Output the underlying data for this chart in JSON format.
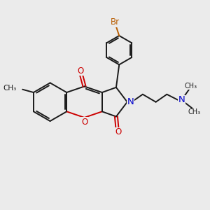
{
  "background_color": "#ebebeb",
  "bond_color": "#1a1a1a",
  "oxygen_color": "#cc0000",
  "nitrogen_color": "#0000cc",
  "bromine_color": "#b85c00",
  "figsize": [
    3.0,
    3.0
  ],
  "dpi": 100,
  "xlim": [
    0,
    10
  ],
  "ylim": [
    0,
    10
  ]
}
